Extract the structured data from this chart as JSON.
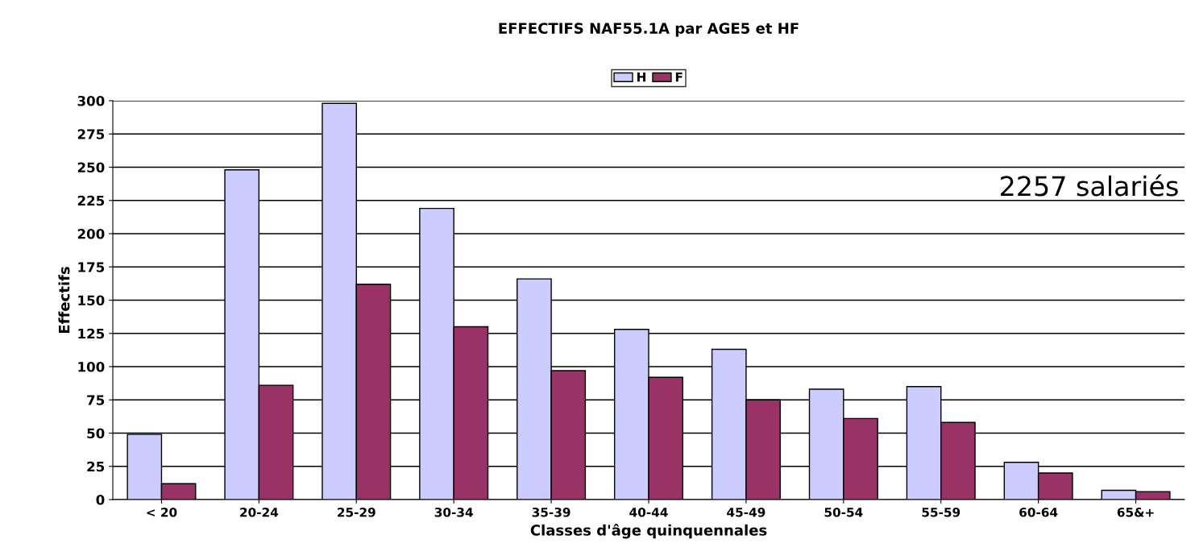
{
  "chart_data": {
    "type": "bar",
    "title": "EFFECTIFS NAF55.1A par AGE5 et HF",
    "xlabel": "Classes d'âge quinquennales",
    "ylabel": "Effectifs",
    "categories": [
      "< 20",
      "20-24",
      "25-29",
      "30-34",
      "35-39",
      "40-44",
      "45-49",
      "50-54",
      "55-59",
      "60-64",
      "65&+"
    ],
    "series": [
      {
        "name": "H",
        "color": "#ccccff",
        "values": [
          49,
          248,
          298,
          219,
          166,
          128,
          113,
          83,
          85,
          28,
          7
        ]
      },
      {
        "name": "F",
        "color": "#993366",
        "values": [
          12,
          86,
          162,
          130,
          97,
          92,
          75,
          61,
          58,
          20,
          6
        ]
      }
    ],
    "ylim": [
      0,
      300
    ],
    "yticks": [
      0,
      25,
      50,
      75,
      100,
      125,
      150,
      175,
      200,
      225,
      250,
      275,
      300
    ],
    "grid": "y",
    "legend": "top",
    "annotations": [
      "2257 salariés"
    ]
  }
}
